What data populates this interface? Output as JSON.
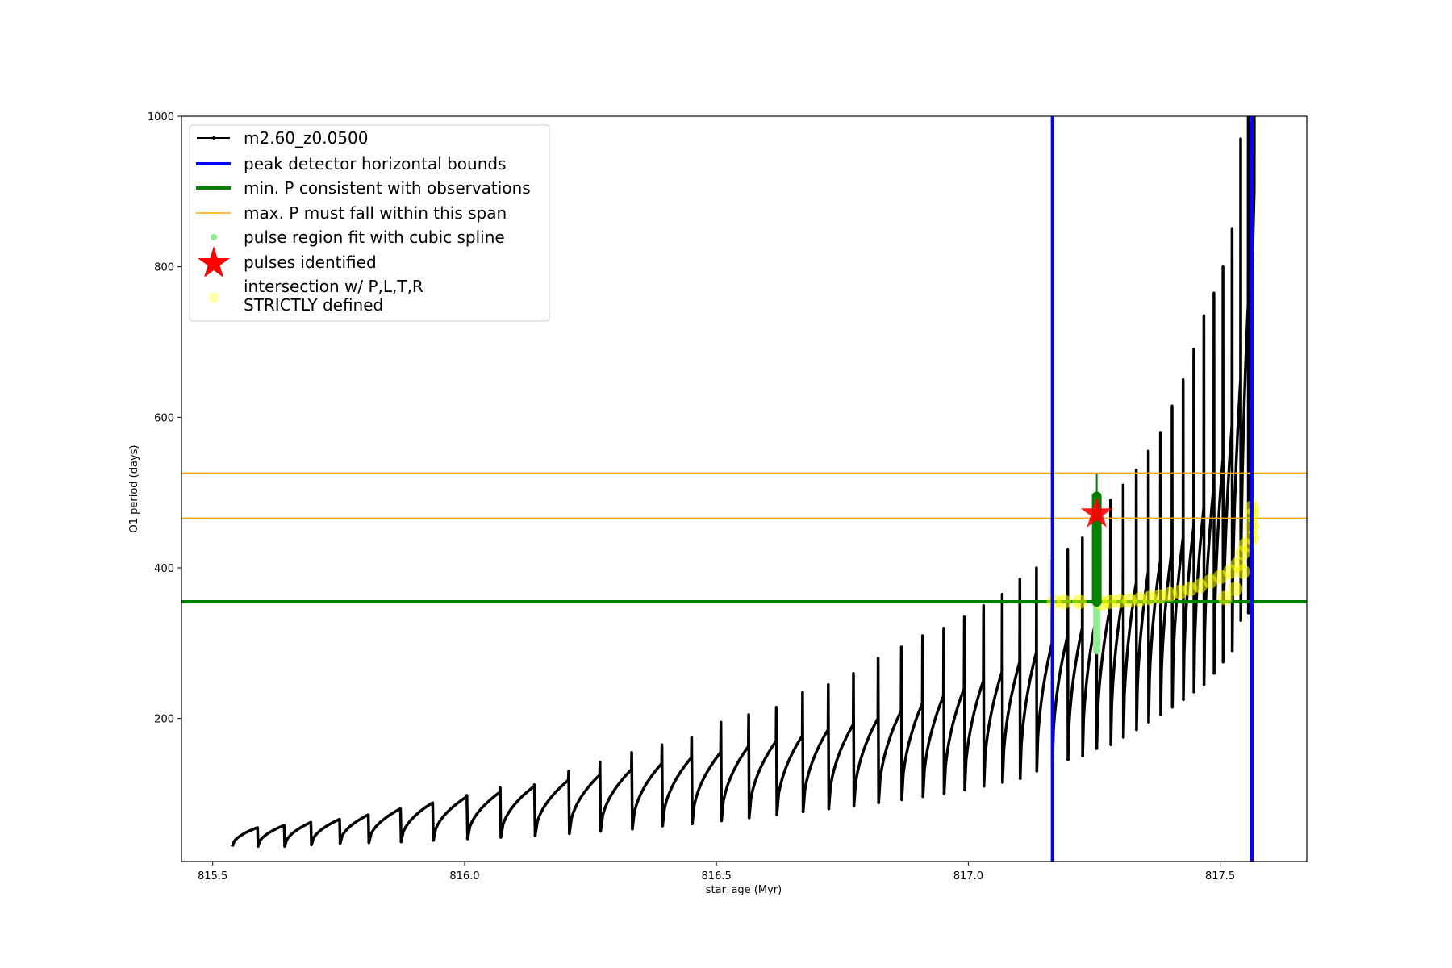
{
  "chart_data": {
    "type": "line",
    "xlabel": "star_age (Myr)",
    "ylabel": "O1 period (days)",
    "xlim": [
      815.438,
      817.672
    ],
    "ylim": [
      10,
      1000
    ],
    "xticks": [
      815.5,
      816.0,
      816.5,
      817.0,
      817.5
    ],
    "xtick_labels": [
      "815.5",
      "816.0",
      "816.5",
      "817.0",
      "817.5"
    ],
    "yticks": [
      200,
      400,
      600,
      800,
      1000
    ],
    "ytick_labels": [
      "200",
      "400",
      "600",
      "800",
      "1000"
    ],
    "grid": false,
    "legend_position": "top-left",
    "legend": [
      {
        "label": "m2.60_z0.0500",
        "kind": "line-marker",
        "color": "#000000"
      },
      {
        "label": "peak detector horizontal bounds",
        "kind": "line",
        "color": "#0000ff"
      },
      {
        "label": "min. P consistent with observations",
        "kind": "line",
        "color": "#008000"
      },
      {
        "label": "max. P must fall within this span",
        "kind": "thinline",
        "color": "#ffa500"
      },
      {
        "label": "pulse region fit with cubic spline",
        "kind": "dot",
        "color": "#90ee90"
      },
      {
        "label": "pulses identified",
        "kind": "star",
        "color": "#ff0000"
      },
      {
        "label": "intersection w/ P,L,T,R",
        "label2": "STRICTLY defined",
        "kind": "bigdot",
        "color": "#ffff80"
      }
    ],
    "series_track": {
      "name": "m2.60_z0.0500",
      "pulse_fields": [
        "age",
        "trough",
        "curve_peak",
        "spike"
      ],
      "pulses": [
        [
          815.539,
          30,
          55,
          55
        ],
        [
          815.59,
          30,
          58,
          58
        ],
        [
          815.643,
          30,
          62,
          62
        ],
        [
          815.696,
          32,
          66,
          66
        ],
        [
          815.753,
          34,
          72,
          72
        ],
        [
          815.81,
          35,
          80,
          80
        ],
        [
          815.874,
          36,
          88,
          88
        ],
        [
          815.938,
          38,
          96,
          98
        ],
        [
          816.006,
          40,
          102,
          108
        ],
        [
          816.072,
          42,
          110,
          112
        ],
        [
          816.14,
          44,
          118,
          130
        ],
        [
          816.208,
          47,
          125,
          142
        ],
        [
          816.27,
          50,
          132,
          155
        ],
        [
          816.333,
          53,
          140,
          165
        ],
        [
          816.393,
          57,
          148,
          175
        ],
        [
          816.452,
          60,
          155,
          195
        ],
        [
          816.51,
          64,
          163,
          205
        ],
        [
          816.565,
          68,
          170,
          215
        ],
        [
          816.62,
          72,
          177,
          235
        ],
        [
          816.672,
          76,
          185,
          245
        ],
        [
          816.723,
          80,
          192,
          260
        ],
        [
          816.773,
          84,
          200,
          280
        ],
        [
          816.822,
          88,
          210,
          295
        ],
        [
          816.868,
          92,
          220,
          310
        ],
        [
          816.91,
          96,
          230,
          320
        ],
        [
          816.952,
          100,
          240,
          335
        ],
        [
          816.993,
          105,
          250,
          350
        ],
        [
          817.031,
          110,
          262,
          365
        ],
        [
          817.068,
          115,
          275,
          385
        ],
        [
          817.103,
          120,
          288,
          400
        ],
        [
          817.136,
          130,
          300,
          410
        ],
        [
          817.167,
          140,
          310,
          425
        ],
        [
          817.198,
          145,
          320,
          440
        ],
        [
          817.227,
          150,
          335,
          455
        ],
        [
          817.255,
          160,
          350,
          490
        ],
        [
          817.283,
          165,
          365,
          510
        ],
        [
          817.308,
          175,
          380,
          530
        ],
        [
          817.334,
          185,
          395,
          555
        ],
        [
          817.358,
          195,
          410,
          580
        ],
        [
          817.382,
          205,
          425,
          615
        ],
        [
          817.405,
          215,
          440,
          650
        ],
        [
          817.427,
          225,
          455,
          690
        ],
        [
          817.448,
          235,
          480,
          735
        ],
        [
          817.468,
          245,
          510,
          765
        ],
        [
          817.488,
          260,
          545,
          800
        ],
        [
          817.506,
          275,
          590,
          850
        ],
        [
          817.524,
          290,
          650,
          970
        ],
        [
          817.541,
          330,
          750,
          1000
        ],
        [
          817.556,
          340,
          900,
          1000
        ]
      ]
    },
    "peak_detector_bounds": [
      817.167,
      817.563
    ],
    "min_P": 355,
    "max_P_span": [
      466,
      526
    ],
    "pulse_identified": {
      "age": 817.255,
      "period": 472
    },
    "spline_fit": {
      "age": 817.255,
      "period_range": [
        290,
        355
      ]
    },
    "min_P_marker": {
      "age": 817.255,
      "thick_range": [
        355,
        495
      ],
      "thin_top": 525
    },
    "intersections": [
      [
        817.17,
        355
      ],
      [
        817.19,
        355
      ],
      [
        817.22,
        355
      ],
      [
        817.265,
        353
      ],
      [
        817.28,
        355
      ],
      [
        817.3,
        356
      ],
      [
        817.32,
        357
      ],
      [
        817.34,
        358
      ],
      [
        817.36,
        360
      ],
      [
        817.38,
        362
      ],
      [
        817.4,
        365
      ],
      [
        817.42,
        368
      ],
      [
        817.44,
        372
      ],
      [
        817.46,
        376
      ],
      [
        817.48,
        382
      ],
      [
        817.5,
        388
      ],
      [
        817.52,
        395
      ],
      [
        817.535,
        405
      ],
      [
        817.545,
        420
      ],
      [
        817.55,
        430
      ],
      [
        817.545,
        395
      ],
      [
        817.53,
        372
      ],
      [
        817.51,
        360
      ],
      [
        817.563,
        440
      ],
      [
        817.563,
        455
      ],
      [
        817.563,
        470
      ],
      [
        817.563,
        480
      ]
    ]
  }
}
